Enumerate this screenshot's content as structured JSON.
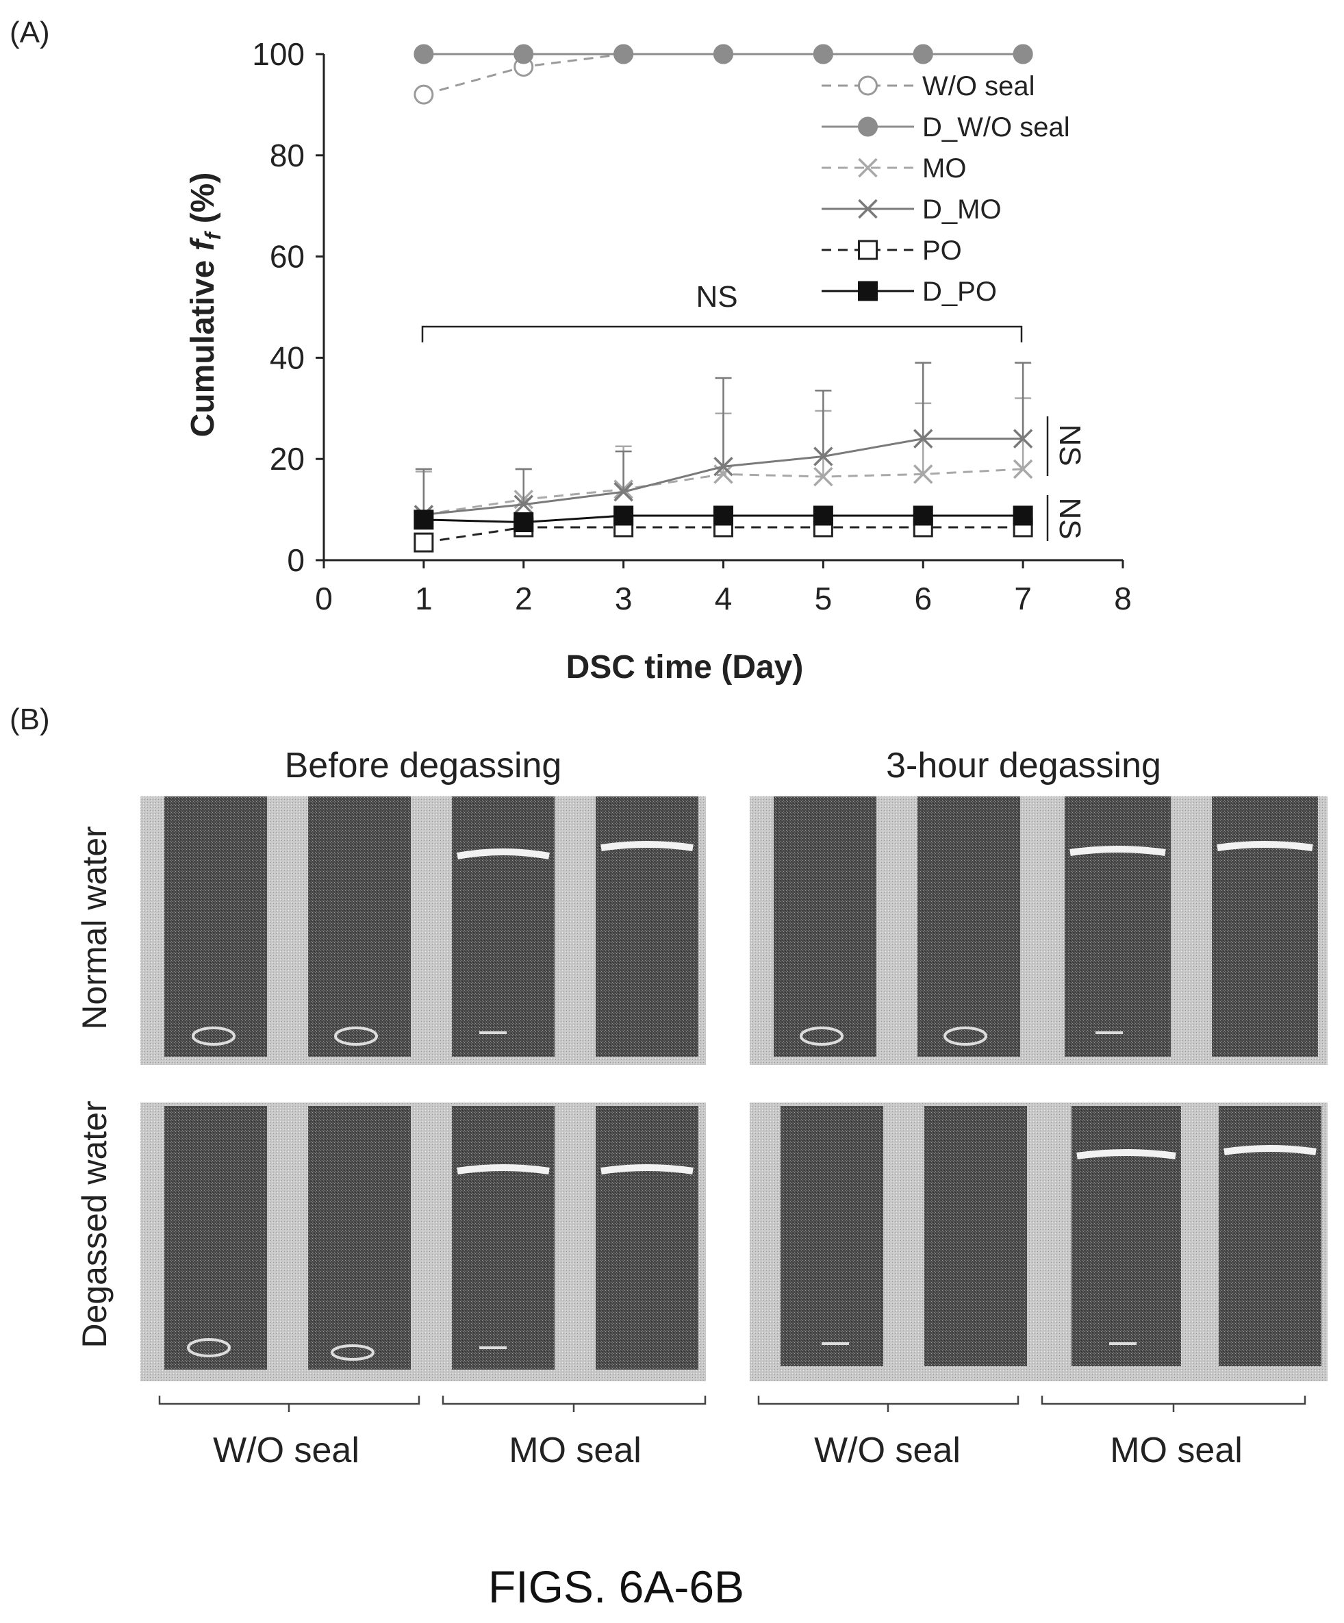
{
  "figure": {
    "caption": "FIGS. 6A-6B"
  },
  "panel_a": {
    "label": "(A)"
  },
  "chart_data": {
    "type": "line",
    "xlabel": "DSC time (Day)",
    "ylabel": "Cumulative",
    "ylabel_symbol": "f",
    "ylabel_sub": "f",
    "ylabel_unit": "(%)",
    "xlim": [
      0,
      8
    ],
    "ylim": [
      0,
      100
    ],
    "xticks": [
      "0",
      "1",
      "2",
      "3",
      "4",
      "5",
      "6",
      "7",
      "8"
    ],
    "yticks": [
      "0",
      "20",
      "40",
      "60",
      "80",
      "100"
    ],
    "grid": false,
    "legend_position": "top-right",
    "x": [
      1,
      2,
      3,
      4,
      5,
      6,
      7
    ],
    "series": [
      {
        "name": "W/O seal",
        "values": [
          92,
          97.5,
          100,
          100,
          100,
          100,
          100
        ],
        "error": null,
        "marker": "circle-open",
        "dash": "dashed",
        "color": "#9a9a9a"
      },
      {
        "name": "D_W/O seal",
        "values": [
          100,
          100,
          100,
          100,
          100,
          100,
          100
        ],
        "error": null,
        "marker": "circle-filled",
        "dash": "solid",
        "color": "#8c8c8c"
      },
      {
        "name": "MO",
        "values": [
          9,
          12,
          14,
          17,
          16.5,
          17,
          18
        ],
        "error": [
          8.5,
          6,
          8.5,
          12,
          13,
          14,
          14
        ],
        "marker": "x-mark",
        "dash": "dashed",
        "color": "#a8a8a8"
      },
      {
        "name": "D_MO",
        "values": [
          9,
          11,
          13.5,
          18.5,
          20.5,
          24,
          24
        ],
        "error": [
          9,
          7,
          8,
          17.5,
          13,
          15,
          15
        ],
        "marker": "x-mark",
        "dash": "solid",
        "color": "#7a7a7a"
      },
      {
        "name": "PO",
        "values": [
          3.5,
          6.5,
          6.5,
          6.5,
          6.5,
          6.5,
          6.5
        ],
        "error": null,
        "marker": "square-open",
        "dash": "dashed",
        "color": "#222222"
      },
      {
        "name": "D_PO",
        "values": [
          8,
          7.5,
          8.8,
          8.8,
          8.8,
          8.8,
          8.8
        ],
        "error": null,
        "marker": "square-filled",
        "dash": "solid",
        "color": "#111111"
      }
    ],
    "annotations": {
      "bracket_top": "NS",
      "bracket_mo": "NS",
      "bracket_po": "NS"
    }
  },
  "panel_b": {
    "label": "(B)",
    "col_titles": [
      "Before degassing",
      "3-hour degassing"
    ],
    "row_labels": [
      "Normal water",
      "Degassed water"
    ],
    "group_labels": [
      "W/O seal",
      "MO seal",
      "W/O seal",
      "MO seal"
    ]
  }
}
